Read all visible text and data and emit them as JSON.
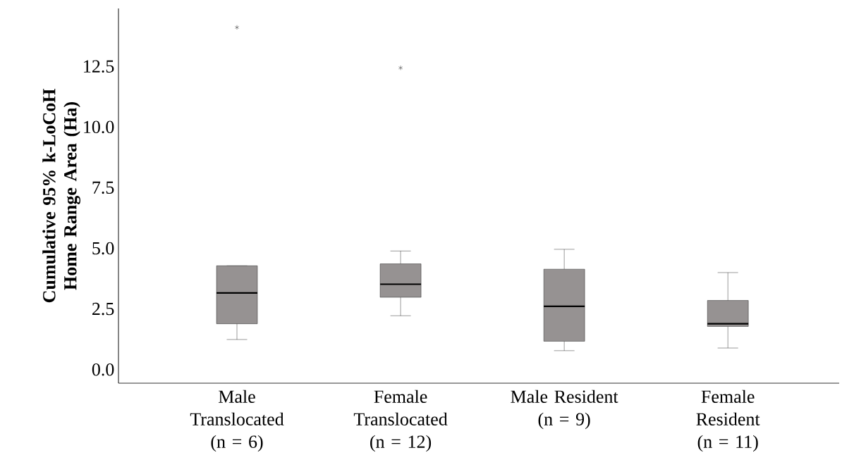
{
  "chart_data": {
    "type": "box",
    "ylabel": "Cumulative 95% k-LoCoH Home Range Area (Ha)",
    "categories": [
      "Male Translocated (n = 6)",
      "Female Translocated (n = 12)",
      "Male Resident (n = 9)",
      "Female Resident (n = 11)"
    ],
    "boxes": [
      {
        "low": 1.24,
        "q1": 1.89,
        "median": 3.16,
        "q3": 4.28,
        "high": 4.28,
        "outliers": [
          14.11
        ]
      },
      {
        "low": 2.22,
        "q1": 2.98,
        "median": 3.52,
        "q3": 4.36,
        "high": 4.89,
        "outliers": [
          12.44
        ]
      },
      {
        "low": 0.78,
        "q1": 1.17,
        "median": 2.61,
        "q3": 4.14,
        "high": 4.96
      },
      {
        "low": 0.89,
        "q1": 1.78,
        "median": 1.89,
        "q3": 2.85,
        "high": 4.0
      }
    ],
    "color": "#969292",
    "marker": "star",
    "ylim": [
      -0.56,
      14.89
    ],
    "yticks": [
      {
        "value": 0,
        "label": "0.0"
      },
      {
        "value": 2.5,
        "label": "2.5"
      },
      {
        "value": 5,
        "label": "5.0"
      },
      {
        "value": 7.5,
        "label": "7.5"
      },
      {
        "value": 10,
        "label": "10.0"
      },
      {
        "value": 12.5,
        "label": "12.5"
      }
    ],
    "grid": false
  }
}
